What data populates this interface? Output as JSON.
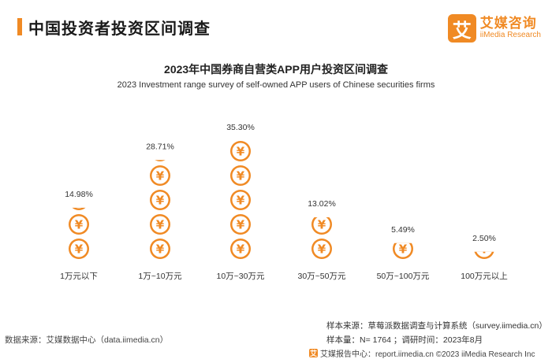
{
  "header": {
    "title": "中国投资者投资区间调查"
  },
  "logo": {
    "mark": "艾",
    "name_cn": "艾媒咨询",
    "name_en": "iiMedia Research"
  },
  "colors": {
    "accent": "#f08a24",
    "title_bar": "#f08a24",
    "text": "#222222"
  },
  "chart_data": {
    "type": "bar",
    "title": "2023年中国券商自营类APP用户投资区间调查",
    "subtitle": "2023 Investment range survey of self-owned APP users of Chinese securities firms",
    "categories": [
      "1万元以下",
      "1万~10万元",
      "10万~30万元",
      "30万~50万元",
      "50万~100万元",
      "100万元以上"
    ],
    "values": [
      14.98,
      28.71,
      35.3,
      13.02,
      5.49,
      2.5
    ],
    "value_labels": [
      "14.98%",
      "28.71%",
      "35.30%",
      "13.02%",
      "5.49%",
      "2.50%"
    ],
    "unit": "%",
    "icon": "yuan-coin-icon",
    "icon_unit_value": 7.06,
    "ylim": [
      0,
      35.3
    ],
    "grid": false,
    "legend": "none"
  },
  "footer": {
    "source": "数据来源：艾媒数据中心（data.iimedia.cn）",
    "sample_source": "样本来源：草莓派数据调查与计算系统（survey.iimedia.cn）",
    "sample_size": "样本量：N= 1764 ；调研时间：2023年8月",
    "report": "艾媒报告中心：report.iimedia.cn    ©2023  iiMedia Research  Inc",
    "report_logo": "艾"
  }
}
